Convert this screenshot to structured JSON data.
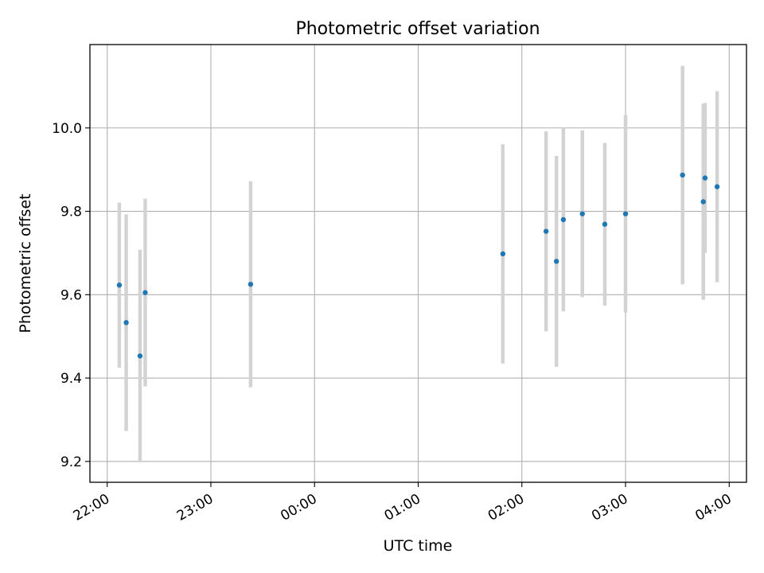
{
  "chart_data": {
    "type": "scatter",
    "title": "Photometric offset variation",
    "xlabel": "UTC time",
    "ylabel": "Photometric offset",
    "x_tick_labels": [
      "22:00",
      "23:00",
      "00:00",
      "01:00",
      "02:00",
      "03:00",
      "04:00"
    ],
    "y_tick_labels": [
      "9.2",
      "9.4",
      "9.6",
      "9.8",
      "10.0"
    ],
    "y_ticks": [
      9.2,
      9.4,
      9.6,
      9.8,
      10.0
    ],
    "x_ticks": [
      "22:00",
      "23:00",
      "00:00",
      "01:00",
      "02:00",
      "03:00",
      "04:00"
    ],
    "xlim": [
      "21:50",
      "04:10"
    ],
    "ylim": [
      9.15,
      10.2
    ],
    "grid": true,
    "marker_color": "#1f77b4",
    "errorbar_color": "#d3d3d3",
    "points": [
      {
        "x": "22:07",
        "y": 9.623,
        "yerr": 0.198
      },
      {
        "x": "22:11",
        "y": 9.533,
        "yerr": 0.26
      },
      {
        "x": "22:19",
        "y": 9.453,
        "yerr": 0.255
      },
      {
        "x": "22:22",
        "y": 9.605,
        "yerr": 0.225
      },
      {
        "x": "23:23",
        "y": 9.625,
        "yerr": 0.247
      },
      {
        "x": "01:49",
        "y": 9.698,
        "yerr": 0.263
      },
      {
        "x": "02:14",
        "y": 9.752,
        "yerr": 0.24
      },
      {
        "x": "02:20",
        "y": 9.68,
        "yerr": 0.253
      },
      {
        "x": "02:24",
        "y": 9.78,
        "yerr": 0.22
      },
      {
        "x": "02:35",
        "y": 9.794,
        "yerr": 0.2
      },
      {
        "x": "02:48",
        "y": 9.769,
        "yerr": 0.195
      },
      {
        "x": "03:00",
        "y": 9.794,
        "yerr": 0.237
      },
      {
        "x": "03:33",
        "y": 9.887,
        "yerr": 0.262
      },
      {
        "x": "03:45",
        "y": 9.823,
        "yerr": 0.235
      },
      {
        "x": "03:46",
        "y": 9.88,
        "yerr": 0.18
      },
      {
        "x": "03:53",
        "y": 9.859,
        "yerr": 0.229
      }
    ]
  }
}
